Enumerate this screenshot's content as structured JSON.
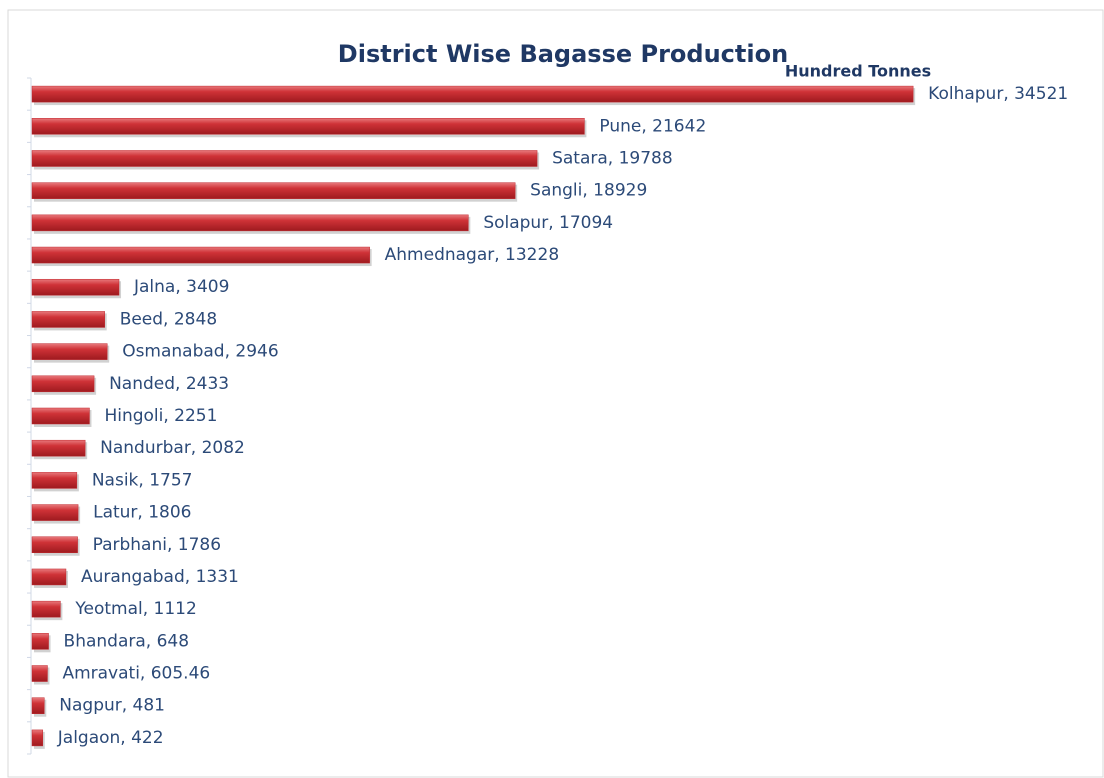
{
  "chart_data": {
    "type": "barh",
    "title": "District Wise Bagasse Production",
    "subtitle": "Hundred Tonnes",
    "values": [
      34521,
      21642,
      19788,
      18929,
      17094,
      13228,
      3409,
      2848,
      2946,
      2433,
      2251,
      2082,
      1757,
      1806,
      1786,
      1331,
      1112,
      648,
      605.46,
      481,
      422
    ],
    "value_labels": [
      "Kolhapur, 34521",
      "Pune, 21642",
      "Satara, 19788",
      "Sangli, 18929",
      "Solapur, 17094",
      "Ahmednagar, 13228",
      "Jalna, 3409",
      "Beed, 2848",
      "Osmanabad, 2946",
      "Nanded, 2433",
      "Hingoli, 2251",
      "Nandurbar, 2082",
      "Nasik, 1757",
      "Latur, 1806",
      "Parbhani, 1786",
      "Aurangabad, 1331",
      "Yeotmal, 1112",
      "Bhandara, 648",
      "Amravati, 605.46",
      "Nagpur, 481",
      "Jalgaon, 422"
    ],
    "color": "#c0272d",
    "xlim": [
      0,
      40000
    ]
  }
}
